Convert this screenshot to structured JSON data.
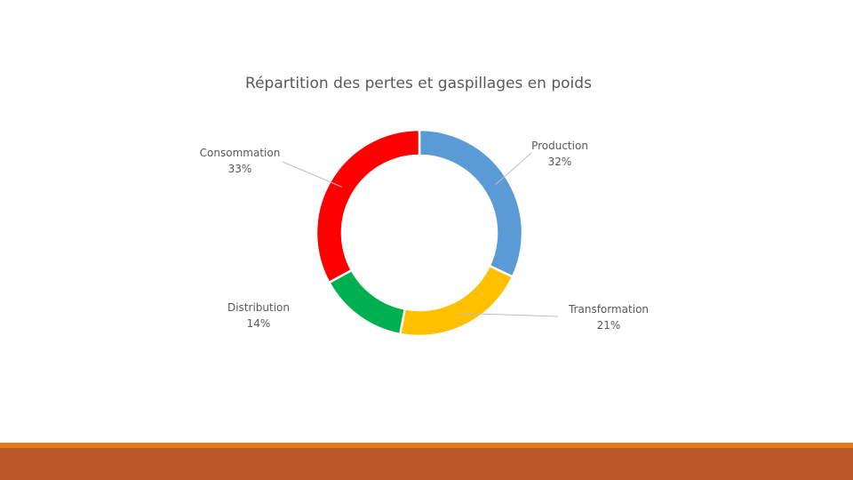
{
  "chart_data": {
    "type": "pie",
    "variant": "donut",
    "title": "Répartition des pertes et gaspillages en poids",
    "categories": [
      "Production",
      "Transformation",
      "Distribution",
      "Consommation"
    ],
    "values": [
      32,
      21,
      14,
      33
    ],
    "value_labels": [
      "32%",
      "21%",
      "14%",
      "33%"
    ],
    "colors": [
      "#5b9bd5",
      "#ffc000",
      "#00b050",
      "#ff0000"
    ],
    "legend": "none"
  },
  "footer": {
    "accent_color": "#e07d1f",
    "band_color": "#bb5828"
  }
}
